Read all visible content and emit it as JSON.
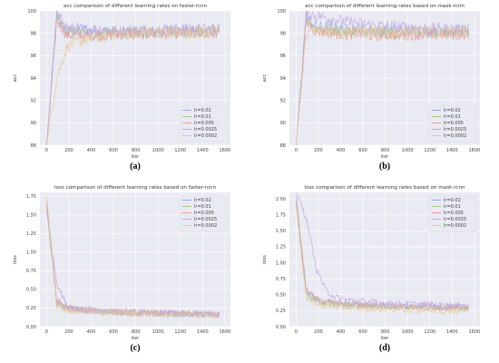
{
  "figure": {
    "background": "#ffffff",
    "plot_background": "#eaeaf2",
    "grid_color": "#ffffff",
    "legend_colors": [
      "#8fb0e3",
      "#a6c98f",
      "#e79a9a",
      "#c3a6e6",
      "#e6c89a"
    ]
  },
  "chart_data": [
    {
      "type": "line",
      "panel_label": "(a)",
      "title": "acc comparison of different learning rates on faster-rcnn",
      "xlabel": "iter",
      "ylabel": "acc",
      "xlim": [
        -60,
        1650
      ],
      "ylim": [
        88,
        100
      ],
      "xticks": [
        0,
        200,
        400,
        600,
        800,
        1000,
        1200,
        1400,
        1600
      ],
      "yticks": [
        88,
        90,
        92,
        94,
        96,
        98,
        100
      ],
      "grid": true,
      "legend_position": "lower-right",
      "x_end": 1550,
      "series": [
        {
          "name": "lr=0.02",
          "color": "#8fb0e3",
          "values": [
            88,
            99.6,
            98.1,
            98.2,
            98.3,
            98.1,
            98.2,
            98.0,
            98.1,
            98.2,
            98.1,
            98.2,
            98.3,
            98.2,
            98.3,
            98.2,
            98.2,
            98.3
          ]
        },
        {
          "name": "lr=0.01",
          "color": "#a6c98f",
          "values": [
            88,
            99.4,
            98.0,
            98.1,
            98.0,
            97.9,
            98.0,
            98.1,
            98.0,
            98.1,
            98.0,
            98.1,
            98.2,
            98.1,
            98.1,
            98.2,
            98.1,
            98.2
          ]
        },
        {
          "name": "lr=0.005",
          "color": "#e79a9a",
          "values": [
            88,
            99.2,
            97.8,
            97.9,
            97.8,
            97.9,
            97.8,
            97.9,
            98.0,
            97.9,
            98.0,
            97.9,
            98.0,
            98.0,
            97.9,
            98.0,
            98.0,
            98.0
          ]
        },
        {
          "name": "lr=0.0025",
          "color": "#c3a6e6",
          "values": [
            88,
            99.7,
            98.5,
            98.4,
            98.3,
            98.4,
            98.3,
            98.2,
            98.3,
            98.2,
            98.3,
            98.2,
            98.3,
            98.4,
            98.3,
            98.3,
            98.4,
            98.4
          ]
        },
        {
          "name": "lr=0.0002",
          "color": "#e6c89a",
          "values": [
            88,
            94.0,
            96.8,
            97.2,
            97.5,
            97.6,
            97.8,
            97.9,
            97.9,
            98.0,
            98.0,
            98.1,
            98.1,
            98.0,
            98.1,
            98.1,
            98.2,
            98.2
          ]
        }
      ]
    },
    {
      "type": "line",
      "panel_label": "(b)",
      "title": "acc comparison of different learning rates based on mask-rcnn",
      "xlabel": "iter",
      "ylabel": "acc",
      "xlim": [
        -60,
        1650
      ],
      "ylim": [
        88,
        100
      ],
      "xticks": [
        0,
        200,
        400,
        600,
        800,
        1000,
        1200,
        1400,
        1600
      ],
      "yticks": [
        88,
        90,
        92,
        94,
        96,
        98,
        100
      ],
      "grid": true,
      "legend_position": "lower-right",
      "x_end": 1550,
      "series": [
        {
          "name": "lr=0.02",
          "color": "#8fb0e3",
          "values": [
            88,
            99.5,
            98.6,
            98.5,
            98.4,
            98.3,
            98.4,
            98.3,
            98.2,
            98.3,
            98.2,
            98.3,
            98.2,
            98.2,
            98.3,
            98.2,
            98.2,
            98.3
          ]
        },
        {
          "name": "lr=0.01",
          "color": "#a6c98f",
          "values": [
            88,
            99.3,
            98.4,
            98.3,
            98.2,
            98.1,
            98.2,
            98.1,
            98.0,
            98.1,
            98.0,
            98.1,
            98.0,
            98.1,
            98.1,
            98.0,
            98.1,
            98.1
          ]
        },
        {
          "name": "lr=0.005",
          "color": "#e79a9a",
          "values": [
            88,
            99.0,
            98.2,
            98.1,
            98.0,
            97.9,
            98.0,
            97.9,
            97.8,
            97.9,
            97.8,
            97.9,
            97.9,
            97.8,
            97.9,
            97.9,
            97.9,
            98.0
          ]
        },
        {
          "name": "lr=0.0025",
          "color": "#c3a6e6",
          "values": [
            88,
            99.8,
            99.6,
            99.4,
            99.2,
            99.0,
            98.9,
            98.8,
            98.7,
            98.6,
            98.6,
            98.5,
            98.5,
            98.4,
            98.4,
            98.4,
            98.3,
            98.3
          ]
        },
        {
          "name": "lr=0.0002",
          "color": "#e6c89a",
          "values": [
            88,
            98.0,
            98.2,
            98.3,
            98.2,
            98.1,
            98.2,
            98.1,
            98.2,
            98.1,
            98.1,
            98.2,
            98.1,
            98.2,
            98.1,
            98.1,
            98.2,
            98.2
          ]
        }
      ]
    },
    {
      "type": "line",
      "panel_label": "(c)",
      "title": "loss comparison of different learning rates based on faster-rcnn",
      "xlabel": "iter",
      "ylabel": "loss",
      "xlim": [
        -60,
        1650
      ],
      "ylim": [
        0,
        1.8
      ],
      "xticks": [
        0,
        200,
        400,
        600,
        800,
        1000,
        1200,
        1400,
        1600
      ],
      "yticks": [
        0.0,
        0.25,
        0.5,
        0.75,
        1.0,
        1.25,
        1.5,
        1.75
      ],
      "yticklabels": [
        "0.00",
        "0.25",
        "0.50",
        "0.75",
        "1.00",
        "1.25",
        "1.50",
        "1.75"
      ],
      "grid": true,
      "legend_position": "top-right",
      "x_end": 1550,
      "series": [
        {
          "name": "lr=0.02",
          "color": "#8fb0e3",
          "values": [
            1.7,
            0.32,
            0.25,
            0.23,
            0.22,
            0.21,
            0.2,
            0.2,
            0.19,
            0.19,
            0.18,
            0.18,
            0.18,
            0.17,
            0.17,
            0.17,
            0.16,
            0.16
          ]
        },
        {
          "name": "lr=0.01",
          "color": "#a6c98f",
          "values": [
            1.6,
            0.3,
            0.24,
            0.22,
            0.21,
            0.2,
            0.19,
            0.19,
            0.18,
            0.18,
            0.18,
            0.17,
            0.17,
            0.17,
            0.16,
            0.16,
            0.16,
            0.16
          ]
        },
        {
          "name": "lr=0.005",
          "color": "#e79a9a",
          "values": [
            1.65,
            0.35,
            0.26,
            0.24,
            0.23,
            0.22,
            0.21,
            0.2,
            0.2,
            0.19,
            0.19,
            0.18,
            0.18,
            0.18,
            0.17,
            0.17,
            0.17,
            0.17
          ]
        },
        {
          "name": "lr=0.0025",
          "color": "#c3a6e6",
          "values": [
            1.55,
            0.6,
            0.28,
            0.24,
            0.22,
            0.21,
            0.2,
            0.2,
            0.19,
            0.19,
            0.18,
            0.18,
            0.18,
            0.17,
            0.17,
            0.17,
            0.17,
            0.16
          ]
        },
        {
          "name": "lr=0.0002",
          "color": "#e6c89a",
          "values": [
            1.75,
            0.28,
            0.22,
            0.21,
            0.2,
            0.19,
            0.19,
            0.18,
            0.18,
            0.17,
            0.17,
            0.17,
            0.16,
            0.16,
            0.16,
            0.16,
            0.15,
            0.15
          ]
        }
      ]
    },
    {
      "type": "line",
      "panel_label": "(d)",
      "title": "loss comparison of different learning rates based on mask-rcnn",
      "xlabel": "iter",
      "ylabel": "loss",
      "xlim": [
        -60,
        1650
      ],
      "ylim": [
        0,
        2.1
      ],
      "xticks": [
        0,
        200,
        400,
        600,
        800,
        1000,
        1200,
        1400,
        1600
      ],
      "yticks": [
        0.0,
        0.25,
        0.5,
        0.75,
        1.0,
        1.25,
        1.5,
        1.75,
        2.0
      ],
      "yticklabels": [
        "0.00",
        "0.25",
        "0.50",
        "0.75",
        "1.00",
        "1.25",
        "1.50",
        "1.75",
        "2.00"
      ],
      "grid": true,
      "legend_position": "top-right",
      "x_end": 1550,
      "series": [
        {
          "name": "lr=0.02",
          "color": "#8fb0e3",
          "values": [
            2.05,
            0.55,
            0.42,
            0.38,
            0.36,
            0.35,
            0.34,
            0.33,
            0.33,
            0.32,
            0.32,
            0.31,
            0.31,
            0.31,
            0.3,
            0.3,
            0.3,
            0.3
          ]
        },
        {
          "name": "lr=0.01",
          "color": "#a6c98f",
          "values": [
            1.95,
            0.5,
            0.4,
            0.37,
            0.35,
            0.34,
            0.33,
            0.33,
            0.32,
            0.32,
            0.31,
            0.31,
            0.3,
            0.3,
            0.3,
            0.3,
            0.29,
            0.29
          ]
        },
        {
          "name": "lr=0.005",
          "color": "#e79a9a",
          "values": [
            2.0,
            0.58,
            0.44,
            0.39,
            0.37,
            0.36,
            0.35,
            0.34,
            0.33,
            0.33,
            0.32,
            0.32,
            0.31,
            0.31,
            0.31,
            0.3,
            0.3,
            0.3
          ]
        },
        {
          "name": "lr=0.0025",
          "color": "#c3a6e6",
          "values": [
            2.1,
            1.7,
            0.9,
            0.55,
            0.45,
            0.42,
            0.4,
            0.39,
            0.38,
            0.37,
            0.36,
            0.36,
            0.35,
            0.35,
            0.34,
            0.34,
            0.33,
            0.33
          ]
        },
        {
          "name": "lr=0.0002",
          "color": "#e6c89a",
          "values": [
            1.9,
            0.45,
            0.36,
            0.33,
            0.31,
            0.3,
            0.29,
            0.28,
            0.28,
            0.27,
            0.27,
            0.26,
            0.26,
            0.26,
            0.25,
            0.25,
            0.25,
            0.25
          ]
        }
      ]
    }
  ]
}
